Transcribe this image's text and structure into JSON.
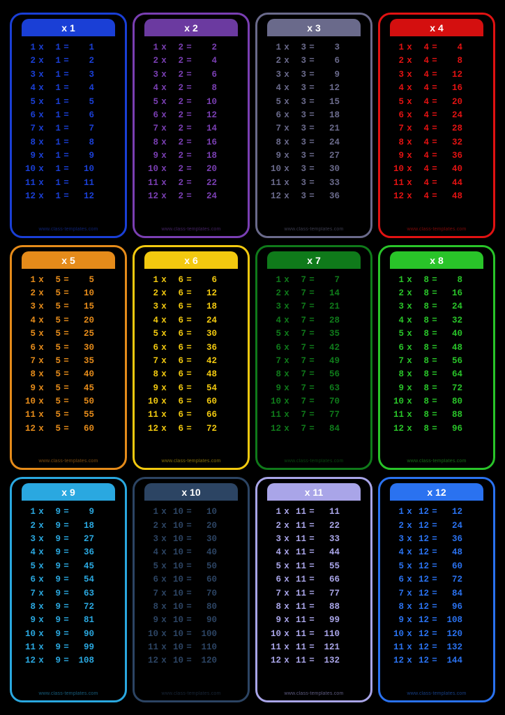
{
  "background_color": "#000000",
  "footer_text": "www.class-templates.com",
  "columns": 4,
  "rows_count": 3,
  "row_range": [
    1,
    12
  ],
  "mult_symbol": "x",
  "eq_symbol": "=",
  "header_prefix": "x ",
  "header_text_color": "#ffffff",
  "tables": [
    {
      "n": 1,
      "color": "#1a3fd6",
      "header_bg": "#1a3fd6"
    },
    {
      "n": 2,
      "color": "#7a3fb3",
      "header_bg": "#6b3aa0"
    },
    {
      "n": 3,
      "color": "#6a6a8b",
      "header_bg": "#6a6a8b"
    },
    {
      "n": 4,
      "color": "#e11212",
      "header_bg": "#d40f0f"
    },
    {
      "n": 5,
      "color": "#e58b1a",
      "header_bg": "#e58b1a"
    },
    {
      "n": 6,
      "color": "#f2c90f",
      "header_bg": "#f2c90f"
    },
    {
      "n": 7,
      "color": "#0f7a1a",
      "header_bg": "#0f7a1a"
    },
    {
      "n": 8,
      "color": "#29c429",
      "header_bg": "#29c429"
    },
    {
      "n": 9,
      "color": "#2aa8e0",
      "header_bg": "#2aa8e0"
    },
    {
      "n": 10,
      "color": "#2c4463",
      "header_bg": "#2c4463"
    },
    {
      "n": 11,
      "color": "#a9a5e8",
      "header_bg": "#a9a5e8"
    },
    {
      "n": 12,
      "color": "#2a72f0",
      "header_bg": "#2a72f0"
    }
  ]
}
